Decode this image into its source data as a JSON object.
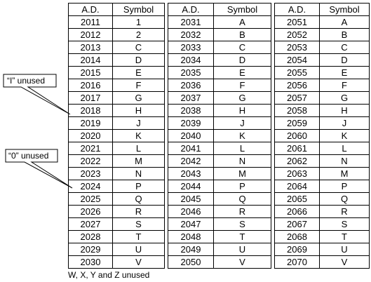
{
  "table": {
    "header": [
      "A.D.",
      "Symbol",
      "A.D.",
      "Symbol",
      "A.D.",
      "Symbol"
    ],
    "rows": [
      [
        "2011",
        "1",
        "2031",
        "A",
        "2051",
        "A"
      ],
      [
        "2012",
        "2",
        "2032",
        "B",
        "2052",
        "B"
      ],
      [
        "2013",
        "C",
        "2033",
        "C",
        "2053",
        "C"
      ],
      [
        "2014",
        "D",
        "2034",
        "D",
        "2054",
        "D"
      ],
      [
        "2015",
        "E",
        "2035",
        "E",
        "2055",
        "E"
      ],
      [
        "2016",
        "F",
        "2036",
        "F",
        "2056",
        "F"
      ],
      [
        "2017",
        "G",
        "2037",
        "G",
        "2057",
        "G"
      ],
      [
        "2018",
        "H",
        "2038",
        "H",
        "2058",
        "H"
      ],
      [
        "2019",
        "J",
        "2039",
        "J",
        "2059",
        "J"
      ],
      [
        "2020",
        "K",
        "2040",
        "K",
        "2060",
        "K"
      ],
      [
        "2021",
        "L",
        "2041",
        "L",
        "2061",
        "L"
      ],
      [
        "2022",
        "M",
        "2042",
        "N",
        "2062",
        "N"
      ],
      [
        "2023",
        "N",
        "2043",
        "M",
        "2063",
        "M"
      ],
      [
        "2024",
        "P",
        "2044",
        "P",
        "2064",
        "P"
      ],
      [
        "2025",
        "Q",
        "2045",
        "Q",
        "2065",
        "Q"
      ],
      [
        "2026",
        "R",
        "2046",
        "R",
        "2066",
        "R"
      ],
      [
        "2027",
        "S",
        "2047",
        "S",
        "2067",
        "S"
      ],
      [
        "2028",
        "T",
        "2048",
        "T",
        "2068",
        "T"
      ],
      [
        "2029",
        "U",
        "2049",
        "U",
        "2069",
        "U"
      ],
      [
        "2030",
        "V",
        "2050",
        "V",
        "2070",
        "V"
      ]
    ]
  },
  "callouts": [
    "“I” unused",
    "“0” unused"
  ],
  "footnote": "W, X, Y and Z unused"
}
